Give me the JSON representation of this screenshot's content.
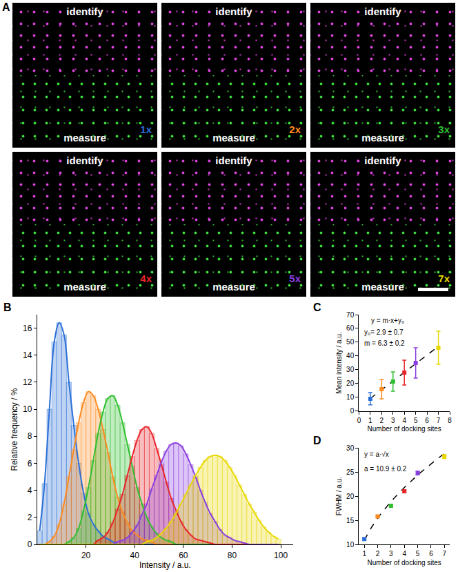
{
  "panel_a": {
    "letter": "A",
    "images": [
      {
        "top_label": "identify",
        "bottom_label": "measure",
        "tag": "1x",
        "color": "#2b6fd6"
      },
      {
        "top_label": "identify",
        "bottom_label": "measure",
        "tag": "2x",
        "color": "#ff8a1e"
      },
      {
        "top_label": "identify",
        "bottom_label": "measure",
        "tag": "3x",
        "color": "#2fbf2f"
      },
      {
        "top_label": "identify",
        "bottom_label": "measure",
        "tag": "4x",
        "color": "#e8252a"
      },
      {
        "top_label": "identify",
        "bottom_label": "measure",
        "tag": "5x",
        "color": "#8a3fe0"
      },
      {
        "top_label": "identify",
        "bottom_label": "measure",
        "tag": "7x",
        "color": "#e8d800"
      }
    ]
  },
  "chart_data": [
    {
      "letter": "B",
      "type": "histogram",
      "x_label": "Intensity / a.u.",
      "y_label": "Relative frequency / %",
      "xlim": [
        0,
        105
      ],
      "xticks": [
        20,
        40,
        60,
        80,
        100
      ],
      "ylim": [
        0,
        17
      ],
      "yticks": [
        0,
        2,
        4,
        6,
        8,
        10,
        12,
        14,
        16
      ],
      "bins": [
        0,
        2,
        4,
        6,
        8,
        10,
        12,
        14,
        16,
        18,
        20,
        22,
        24,
        26,
        28,
        30,
        32,
        34,
        36,
        38,
        40,
        42,
        44,
        46,
        48,
        50,
        52,
        54,
        56,
        58,
        60,
        62,
        64,
        66,
        68,
        70,
        72,
        74,
        76,
        78,
        80,
        82,
        84,
        86,
        88,
        90,
        92,
        94,
        96,
        98,
        100
      ],
      "series": [
        {
          "color": "#2b6fd6",
          "values": [
            1,
            4.5,
            10,
            15,
            16.4,
            15.5,
            12,
            8.8,
            6,
            3.8,
            2.3,
            1.5,
            1,
            0.6,
            0.4,
            0.2,
            0,
            0,
            0,
            0,
            0,
            0,
            0,
            0,
            0,
            0,
            0,
            0,
            0,
            0,
            0,
            0,
            0,
            0,
            0,
            0,
            0,
            0,
            0,
            0,
            0,
            0,
            0,
            0,
            0,
            0,
            0,
            0,
            0,
            0
          ]
        },
        {
          "color": "#ff8a1e",
          "values": [
            0,
            0,
            0.2,
            0.6,
            1.5,
            3,
            5,
            7,
            9,
            10.5,
            11.3,
            11,
            10,
            8.5,
            6.8,
            5,
            3.5,
            2.4,
            1.6,
            1,
            0.7,
            0.4,
            0.3,
            0.2,
            0,
            0,
            0,
            0,
            0,
            0,
            0,
            0,
            0,
            0,
            0,
            0,
            0,
            0,
            0,
            0,
            0,
            0,
            0,
            0,
            0,
            0,
            0,
            0,
            0,
            0
          ]
        },
        {
          "color": "#2fbf2f",
          "values": [
            0,
            0,
            0,
            0,
            0,
            0,
            0.2,
            0.5,
            1.2,
            2.5,
            4.2,
            6.2,
            8.2,
            9.8,
            10.8,
            11,
            10.3,
            9,
            7.4,
            5.8,
            4.2,
            3,
            2,
            1.3,
            0.8,
            0.5,
            0.3,
            0.2,
            0,
            0,
            0,
            0,
            0,
            0,
            0,
            0,
            0,
            0,
            0,
            0,
            0,
            0,
            0,
            0,
            0,
            0,
            0,
            0,
            0,
            0
          ]
        },
        {
          "color": "#e8252a",
          "values": [
            0,
            0,
            0,
            0,
            0,
            0,
            0,
            0,
            0,
            0,
            0,
            0,
            0.3,
            0.5,
            0.9,
            1.6,
            2.6,
            3.7,
            5.1,
            6.5,
            7.7,
            8.5,
            8.7,
            8.2,
            7.1,
            5.9,
            4.6,
            3.4,
            2.5,
            1.7,
            1.1,
            0.7,
            0.4,
            0.3,
            0.2,
            0.1,
            0,
            0,
            0,
            0,
            0,
            0,
            0,
            0,
            0,
            0,
            0,
            0,
            0,
            0
          ]
        },
        {
          "color": "#8a3fe0",
          "values": [
            0,
            0,
            0,
            0,
            0,
            0,
            0,
            0,
            0,
            0,
            0,
            0,
            0,
            0,
            0,
            0,
            0.2,
            0.3,
            0.5,
            0.9,
            1.4,
            2.2,
            3,
            4.1,
            5.1,
            6.1,
            6.9,
            7.4,
            7.5,
            7.3,
            6.7,
            5.9,
            5,
            4,
            3.1,
            2.3,
            1.7,
            1.1,
            0.7,
            0.5,
            0.3,
            0.2,
            0.1,
            0,
            0,
            0,
            0,
            0,
            0,
            0
          ]
        },
        {
          "color": "#e8d800",
          "values": [
            0,
            0,
            0,
            0,
            0,
            0,
            0,
            0,
            0,
            0,
            0,
            0,
            0,
            0,
            0,
            0,
            0,
            0,
            0,
            0,
            0,
            0,
            0.2,
            0.3,
            0.5,
            0.8,
            1.2,
            1.7,
            2.3,
            3,
            3.7,
            4.4,
            5.1,
            5.7,
            6.2,
            6.5,
            6.6,
            6.5,
            6.2,
            5.7,
            5.1,
            4.4,
            3.7,
            3,
            2.4,
            1.8,
            1.3,
            0.9,
            0.6,
            0.4
          ]
        }
      ]
    },
    {
      "letter": "C",
      "type": "scatter",
      "x_label": "Number of docking sites",
      "y_label": "Mean intensity / a.u.",
      "xlim": [
        0,
        8
      ],
      "xticks": [
        0,
        1,
        2,
        3,
        4,
        5,
        6,
        7,
        8
      ],
      "ylim": [
        0,
        70
      ],
      "yticks": [
        0,
        10,
        20,
        30,
        40,
        50,
        60,
        70
      ],
      "x": [
        1,
        2,
        3,
        4,
        5,
        7
      ],
      "values": [
        9,
        16,
        21.5,
        28,
        35,
        46
      ],
      "errors": [
        4.5,
        7,
        7,
        9,
        11,
        12
      ],
      "colors": [
        "#2b6fd6",
        "#ff8a1e",
        "#2fbf2f",
        "#e8252a",
        "#8a3fe0",
        "#e8d800"
      ],
      "fit": {
        "type": "linear",
        "y0": 2.9,
        "m": 6.3,
        "line_style": "dash"
      },
      "annotations": [
        "y = m·x+y₀",
        "y₀= 2.9 ± 0.7",
        "m = 6.3 ± 0.2"
      ]
    },
    {
      "letter": "D",
      "type": "scatter",
      "x_label": "Number of docking sites",
      "y_label": "FWHM / a.u.",
      "xlim": [
        0.6,
        7.4
      ],
      "xticks": [
        1,
        2,
        3,
        4,
        5,
        6,
        7
      ],
      "ylim": [
        10,
        30
      ],
      "yticks": [
        10,
        15,
        20,
        25,
        30
      ],
      "x": [
        1,
        2,
        3,
        4,
        5,
        7
      ],
      "values": [
        11.1,
        15.8,
        18,
        21,
        24.8,
        28.2
      ],
      "errors": [
        0.2,
        0.2,
        0.3,
        0.3,
        0.4,
        0.4
      ],
      "colors": [
        "#2b6fd6",
        "#ff8a1e",
        "#2fbf2f",
        "#e8252a",
        "#8a3fe0",
        "#e8d800"
      ],
      "fit": {
        "type": "sqrt",
        "a": 10.9,
        "line_style": "dash"
      },
      "annotations": [
        "y = a·√x",
        "a = 10.9 ± 0.2"
      ]
    }
  ]
}
